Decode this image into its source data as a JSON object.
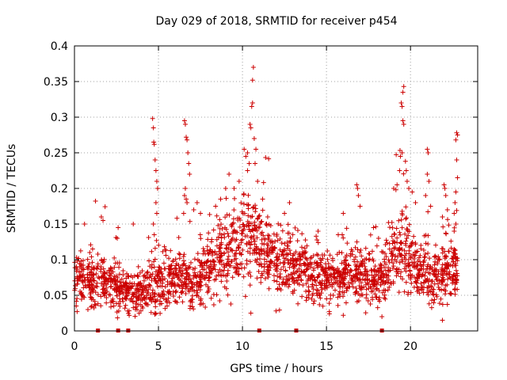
{
  "chart_data": {
    "type": "scatter",
    "title": "Day 029 of 2018, SRMTID for receiver p454",
    "xlabel": "GPS time / hours",
    "ylabel": "SRMTID / TECUs",
    "xlim": [
      0,
      24
    ],
    "ylim": [
      0,
      0.4
    ],
    "xticks": [
      0,
      5,
      10,
      15,
      20
    ],
    "xtick_labels": [
      "0",
      "5",
      "10",
      "15",
      "20"
    ],
    "yticks": [
      0,
      0.05,
      0.1,
      0.15,
      0.2,
      0.25,
      0.3,
      0.35,
      0.4
    ],
    "ytick_labels": [
      "0",
      "0.05",
      "0.1",
      "0.15",
      "0.2",
      "0.25",
      "0.3",
      "0.35",
      "0.4"
    ],
    "grid": true,
    "marker": "plus",
    "point_color": "#cc0000",
    "grid_color": "#a0a0a0",
    "baseline_markers_x": [
      1.4,
      2.6,
      3.2,
      11.0,
      13.2,
      18.3
    ],
    "background_density": [
      [
        0.0,
        0.072,
        0.018
      ],
      [
        0.5,
        0.075,
        0.018
      ],
      [
        1.0,
        0.07,
        0.018
      ],
      [
        1.5,
        0.07,
        0.018
      ],
      [
        2.0,
        0.065,
        0.016
      ],
      [
        2.5,
        0.062,
        0.016
      ],
      [
        3.0,
        0.055,
        0.014
      ],
      [
        3.5,
        0.052,
        0.014
      ],
      [
        4.0,
        0.055,
        0.016
      ],
      [
        4.5,
        0.062,
        0.018
      ],
      [
        5.0,
        0.065,
        0.018
      ],
      [
        5.5,
        0.07,
        0.018
      ],
      [
        6.0,
        0.07,
        0.02
      ],
      [
        6.5,
        0.075,
        0.02
      ],
      [
        7.0,
        0.068,
        0.018
      ],
      [
        7.5,
        0.075,
        0.02
      ],
      [
        8.0,
        0.09,
        0.022
      ],
      [
        8.5,
        0.1,
        0.024
      ],
      [
        9.0,
        0.11,
        0.026
      ],
      [
        9.5,
        0.125,
        0.028
      ],
      [
        10.0,
        0.135,
        0.03
      ],
      [
        10.5,
        0.13,
        0.03
      ],
      [
        11.0,
        0.12,
        0.028
      ],
      [
        11.5,
        0.105,
        0.024
      ],
      [
        12.0,
        0.1,
        0.022
      ],
      [
        12.5,
        0.095,
        0.022
      ],
      [
        13.0,
        0.09,
        0.02
      ],
      [
        13.5,
        0.085,
        0.02
      ],
      [
        14.0,
        0.082,
        0.02
      ],
      [
        14.5,
        0.078,
        0.018
      ],
      [
        15.0,
        0.072,
        0.018
      ],
      [
        15.5,
        0.068,
        0.018
      ],
      [
        16.0,
        0.075,
        0.018
      ],
      [
        16.5,
        0.085,
        0.02
      ],
      [
        17.0,
        0.08,
        0.02
      ],
      [
        17.5,
        0.075,
        0.018
      ],
      [
        18.0,
        0.068,
        0.016
      ],
      [
        18.5,
        0.085,
        0.02
      ],
      [
        19.0,
        0.105,
        0.025
      ],
      [
        19.5,
        0.11,
        0.028
      ],
      [
        20.0,
        0.095,
        0.022
      ],
      [
        20.5,
        0.085,
        0.02
      ],
      [
        21.0,
        0.08,
        0.02
      ],
      [
        21.5,
        0.075,
        0.02
      ],
      [
        22.0,
        0.08,
        0.02
      ],
      [
        22.5,
        0.09,
        0.022
      ],
      [
        22.8,
        0.085,
        0.02
      ]
    ],
    "peak_points": [
      [
        4.65,
        0.298
      ],
      [
        4.7,
        0.285
      ],
      [
        4.72,
        0.265
      ],
      [
        4.75,
        0.262
      ],
      [
        4.8,
        0.24
      ],
      [
        4.85,
        0.225
      ],
      [
        4.9,
        0.21
      ],
      [
        4.95,
        0.2
      ],
      [
        4.85,
        0.18
      ],
      [
        4.9,
        0.165
      ],
      [
        4.7,
        0.15
      ],
      [
        4.75,
        0.135
      ],
      [
        6.55,
        0.295
      ],
      [
        6.6,
        0.29
      ],
      [
        6.65,
        0.272
      ],
      [
        6.7,
        0.268
      ],
      [
        6.75,
        0.25
      ],
      [
        6.8,
        0.235
      ],
      [
        6.85,
        0.22
      ],
      [
        6.6,
        0.2
      ],
      [
        6.55,
        0.19
      ],
      [
        6.65,
        0.185
      ],
      [
        6.7,
        0.18
      ],
      [
        6.5,
        0.165
      ],
      [
        9.2,
        0.22
      ],
      [
        9.5,
        0.2
      ],
      [
        9.8,
        0.21
      ],
      [
        10.1,
        0.255
      ],
      [
        10.2,
        0.245
      ],
      [
        10.3,
        0.225
      ],
      [
        10.45,
        0.29
      ],
      [
        10.5,
        0.285
      ],
      [
        10.55,
        0.315
      ],
      [
        10.6,
        0.32
      ],
      [
        10.65,
        0.37
      ],
      [
        10.6,
        0.352
      ],
      [
        10.7,
        0.27
      ],
      [
        10.8,
        0.255
      ],
      [
        10.75,
        0.235
      ],
      [
        10.9,
        0.21
      ],
      [
        10.3,
        0.25
      ],
      [
        10.4,
        0.235
      ],
      [
        12.8,
        0.18
      ],
      [
        16.8,
        0.205
      ],
      [
        16.85,
        0.2
      ],
      [
        16.9,
        0.19
      ],
      [
        17.0,
        0.175
      ],
      [
        19.0,
        0.2
      ],
      [
        19.2,
        0.205
      ],
      [
        19.35,
        0.225
      ],
      [
        19.4,
        0.245
      ],
      [
        19.5,
        0.25
      ],
      [
        19.55,
        0.295
      ],
      [
        19.6,
        0.29
      ],
      [
        19.45,
        0.32
      ],
      [
        19.5,
        0.315
      ],
      [
        19.55,
        0.335
      ],
      [
        19.6,
        0.343
      ],
      [
        19.7,
        0.238
      ],
      [
        19.75,
        0.225
      ],
      [
        19.8,
        0.21
      ],
      [
        19.9,
        0.2
      ],
      [
        20.1,
        0.195
      ],
      [
        20.3,
        0.18
      ],
      [
        21.0,
        0.255
      ],
      [
        21.05,
        0.25
      ],
      [
        21.0,
        0.22
      ],
      [
        21.1,
        0.21
      ],
      [
        20.9,
        0.19
      ],
      [
        21.2,
        0.175
      ],
      [
        22.0,
        0.205
      ],
      [
        22.05,
        0.2
      ],
      [
        22.1,
        0.19
      ],
      [
        22.2,
        0.17
      ],
      [
        21.9,
        0.16
      ],
      [
        22.75,
        0.278
      ],
      [
        22.8,
        0.275
      ],
      [
        22.7,
        0.268
      ],
      [
        22.75,
        0.24
      ],
      [
        22.8,
        0.215
      ],
      [
        22.7,
        0.195
      ],
      [
        22.65,
        0.18
      ],
      [
        22.6,
        0.165
      ],
      [
        22.7,
        0.15
      ],
      [
        22.6,
        0.14
      ],
      [
        0.6,
        0.15
      ],
      [
        1.6,
        0.16
      ],
      [
        1.7,
        0.155
      ],
      [
        2.6,
        0.145
      ],
      [
        2.55,
        0.13
      ],
      [
        3.5,
        0.15
      ],
      [
        7.1,
        0.17
      ],
      [
        7.3,
        0.18
      ],
      [
        7.5,
        0.165
      ],
      [
        8.4,
        0.175
      ],
      [
        8.7,
        0.185
      ],
      [
        9.0,
        0.2
      ],
      [
        11.2,
        0.185
      ],
      [
        11.5,
        0.16
      ],
      [
        12.5,
        0.165
      ],
      [
        14.5,
        0.14
      ],
      [
        15.7,
        0.135
      ],
      [
        16.0,
        0.165
      ],
      [
        17.8,
        0.145
      ],
      [
        18.1,
        0.13
      ],
      [
        18.3,
        0.02
      ],
      [
        16.0,
        0.022
      ],
      [
        4.8,
        0.025
      ],
      [
        12.0,
        0.028
      ],
      [
        21.9,
        0.015
      ],
      [
        0.8,
        0.03
      ],
      [
        3.0,
        0.032
      ],
      [
        13.3,
        0.038
      ],
      [
        10.5,
        0.025
      ]
    ]
  }
}
